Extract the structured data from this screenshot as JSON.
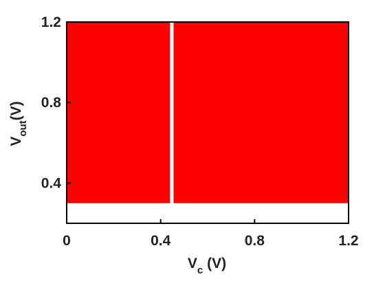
{
  "chart_data": {
    "type": "band",
    "xlabel": [
      "V",
      "c",
      "(V)"
    ],
    "ylabel": [
      "V",
      "out",
      "(V)"
    ],
    "x": [
      0,
      0.44,
      0.445,
      0.455,
      1.2
    ],
    "series": [
      {
        "color": "#ff0000",
        "upper": [
          1.2,
          1.2,
          null,
          1.2,
          1.2
        ],
        "lower": [
          0.3,
          0.3,
          null,
          0.3,
          0.3
        ]
      }
    ],
    "xlim": [
      0,
      1.2
    ],
    "ylim": [
      0.2,
      1.2
    ],
    "xticks": [
      0,
      0.4,
      0.8,
      1.2
    ],
    "yticks": [
      0.4,
      0.8,
      1.2
    ]
  }
}
